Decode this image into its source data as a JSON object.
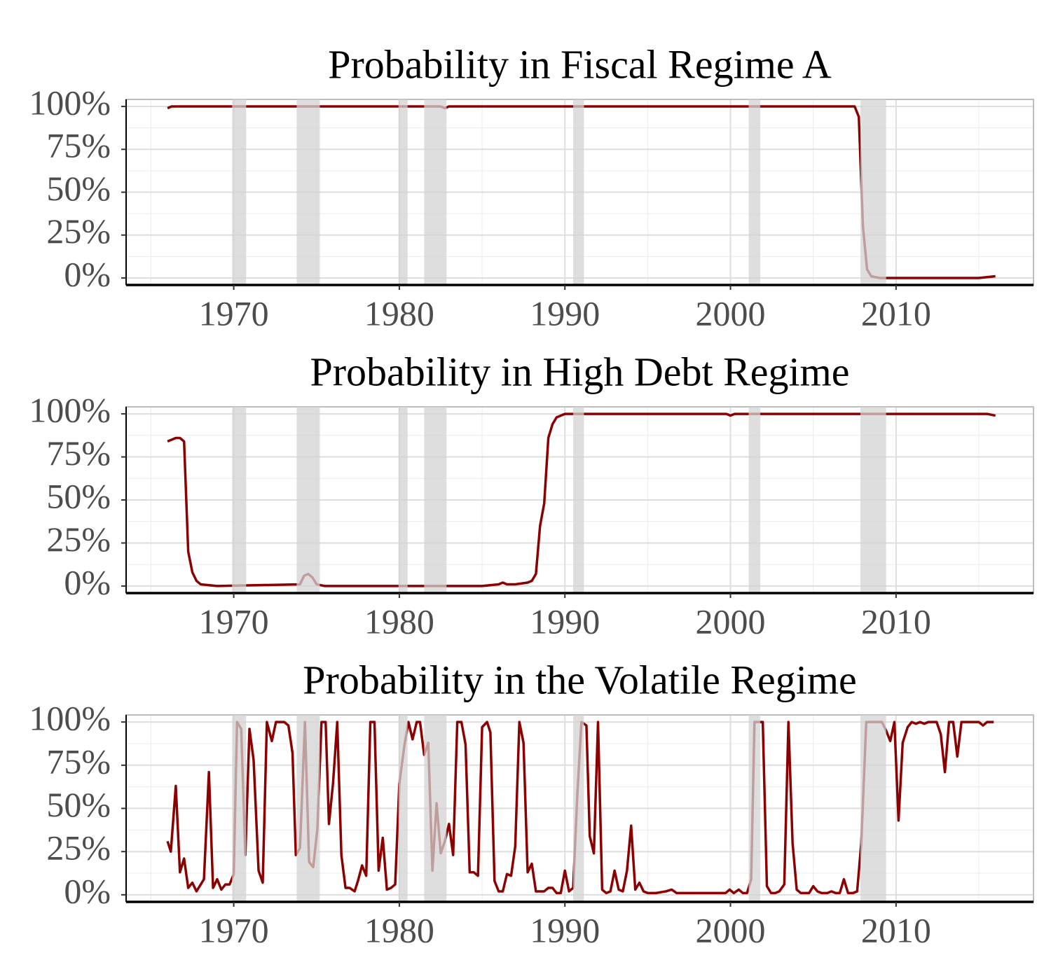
{
  "chart_data": [
    {
      "type": "line",
      "title": "Probability in Fiscal Regime A",
      "color": "#8b0000",
      "grid": true,
      "x": [
        1966,
        1966.25,
        1982.5,
        1982.75,
        1983,
        2007.5,
        2007.75,
        2008,
        2008.25,
        2008.5,
        2009,
        2015,
        2015.5,
        2016
      ],
      "values": [
        99,
        100,
        100,
        99,
        100,
        100,
        94,
        30,
        5,
        1,
        0,
        0,
        0.5,
        1
      ],
      "shaded_periods": [
        [
          1969.9,
          1970.75
        ],
        [
          1973.8,
          1975.2
        ],
        [
          1979.95,
          1980.5
        ],
        [
          1981.5,
          1982.85
        ],
        [
          1990.5,
          1991.15
        ],
        [
          2001.1,
          2001.8
        ],
        [
          2007.85,
          2009.4
        ]
      ],
      "xlim": [
        1963.5,
        2018.3
      ],
      "ylim": [
        -4.1,
        104.1
      ],
      "xticks": [
        1970,
        1980,
        1990,
        2000,
        2010
      ],
      "yticks": [
        {
          "value": 0,
          "label": "0%"
        },
        {
          "value": 25,
          "label": "25%"
        },
        {
          "value": 50,
          "label": "50%"
        },
        {
          "value": 75,
          "label": "75%"
        },
        {
          "value": 100,
          "label": "100%"
        }
      ],
      "minor_xticks": [
        1965,
        1975,
        1985,
        1995,
        2005,
        2015
      ],
      "minor_yticks": [
        12.5,
        37.5,
        62.5,
        87.5
      ]
    },
    {
      "type": "line",
      "title": "Probability in High Debt Regime",
      "color": "#8b0000",
      "grid": true,
      "x": [
        1966,
        1966.5,
        1966.75,
        1967,
        1967.25,
        1967.5,
        1967.75,
        1968,
        1969,
        1974,
        1974.25,
        1974.5,
        1974.75,
        1975,
        1975.5,
        1985,
        1986,
        1986.25,
        1986.5,
        1987,
        1987.75,
        1988,
        1988.25,
        1988.5,
        1988.75,
        1989,
        1989.25,
        1989.5,
        1990,
        1999.75,
        2000,
        2000.25,
        2015.5,
        2016
      ],
      "values": [
        84,
        86,
        86,
        84,
        20,
        8,
        3,
        1,
        0,
        1,
        6,
        7,
        5,
        1,
        0,
        0,
        1,
        2,
        1,
        1,
        2,
        3,
        7,
        35,
        48,
        86,
        94,
        98,
        100,
        100,
        99,
        100,
        100,
        99
      ],
      "shaded_periods": [
        [
          1969.9,
          1970.75
        ],
        [
          1973.8,
          1975.2
        ],
        [
          1979.95,
          1980.5
        ],
        [
          1981.5,
          1982.85
        ],
        [
          1990.5,
          1991.15
        ],
        [
          2001.1,
          2001.8
        ],
        [
          2007.85,
          2009.4
        ]
      ],
      "xlim": [
        1963.5,
        2018.3
      ],
      "ylim": [
        -4.1,
        104.1
      ],
      "xticks": [
        1970,
        1980,
        1990,
        2000,
        2010
      ],
      "yticks": [
        {
          "value": 0,
          "label": "0%"
        },
        {
          "value": 25,
          "label": "25%"
        },
        {
          "value": 50,
          "label": "50%"
        },
        {
          "value": 75,
          "label": "75%"
        },
        {
          "value": 100,
          "label": "100%"
        }
      ],
      "minor_xticks": [
        1965,
        1975,
        1985,
        1995,
        2005,
        2015
      ],
      "minor_yticks": [
        12.5,
        37.5,
        62.5,
        87.5
      ]
    },
    {
      "type": "line",
      "title": "Probability in the Volatile Regime",
      "color": "#8b0000",
      "grid": true,
      "x": [
        1966,
        1966.2,
        1966.5,
        1966.75,
        1967,
        1967.25,
        1967.5,
        1967.75,
        1968.2,
        1968.5,
        1968.75,
        1969,
        1969.25,
        1969.5,
        1969.75,
        1970,
        1970.2,
        1970.45,
        1970.7,
        1970.95,
        1971.2,
        1971.5,
        1971.75,
        1972,
        1972.3,
        1972.55,
        1973.05,
        1973.3,
        1973.55,
        1973.75,
        1974,
        1974.3,
        1974.55,
        1974.8,
        1975.05,
        1975.3,
        1975.55,
        1975.75,
        1976,
        1976.25,
        1976.5,
        1976.75,
        1977,
        1977.3,
        1977.5,
        1977.75,
        1978,
        1978.25,
        1978.5,
        1978.75,
        1979,
        1979.25,
        1979.5,
        1979.75,
        1980,
        1980.3,
        1980.55,
        1980.8,
        1981.05,
        1981.25,
        1981.5,
        1981.75,
        1982,
        1982.25,
        1982.5,
        1982.75,
        1983,
        1983.25,
        1983.5,
        1983.75,
        1984,
        1984.25,
        1984.5,
        1984.75,
        1985,
        1985.3,
        1985.5,
        1985.75,
        1986,
        1986.25,
        1986.5,
        1986.75,
        1987,
        1987.25,
        1987.5,
        1987.75,
        1988,
        1988.25,
        1988.5,
        1988.75,
        1989,
        1989.25,
        1989.5,
        1989.75,
        1990,
        1990.25,
        1990.5,
        1990.75,
        1991,
        1991.3,
        1991.5,
        1991.75,
        1992,
        1992.25,
        1992.5,
        1992.75,
        1993,
        1993.25,
        1993.5,
        1993.75,
        1994,
        1994.25,
        1994.5,
        1994.75,
        1995,
        1995.5,
        1996.1,
        1996.45,
        1996.75,
        1997.8,
        1998.65,
        1999.7,
        1999.95,
        2000.2,
        2000.5,
        2000.75,
        2001,
        2001.25,
        2001.45,
        2001.95,
        2002.2,
        2002.45,
        2002.7,
        2002.95,
        2003.25,
        2003.5,
        2003.75,
        2004,
        2004.25,
        2004.5,
        2004.75,
        2005,
        2005.25,
        2005.5,
        2005.85,
        2006.1,
        2006.35,
        2006.6,
        2006.85,
        2007.1,
        2007.4,
        2007.65,
        2007.9,
        2008.2,
        2009.15,
        2009.4,
        2009.65,
        2009.9,
        2010.15,
        2010.4,
        2010.7,
        2010.95,
        2011.2,
        2011.45,
        2011.7,
        2011.95,
        2012.45,
        2012.7,
        2012.95,
        2013.2,
        2013.45,
        2013.7,
        2013.95,
        2015,
        2015.25,
        2015.5,
        2015.9
      ],
      "values": [
        31,
        25,
        63,
        13,
        21,
        4,
        7,
        2,
        9,
        71,
        4,
        9,
        3,
        6,
        6,
        12,
        100,
        96,
        23,
        96,
        78,
        14,
        7,
        100,
        89,
        100,
        100,
        98,
        82,
        23,
        27,
        100,
        19,
        16,
        38,
        100,
        100,
        41,
        65,
        100,
        23,
        4,
        4,
        2,
        8,
        17,
        11,
        100,
        100,
        14,
        33,
        3,
        4,
        6,
        64,
        86,
        100,
        90,
        100,
        100,
        81,
        88,
        14,
        53,
        24,
        31,
        41,
        23,
        100,
        100,
        87,
        13,
        13,
        11,
        97,
        100,
        94,
        8,
        2,
        2,
        12,
        11,
        28,
        100,
        88,
        13,
        18,
        2,
        2,
        2,
        4,
        4,
        1,
        1,
        14,
        2,
        4,
        58,
        100,
        98,
        34,
        24,
        100,
        3,
        1,
        2,
        14,
        3,
        2,
        14,
        40,
        3,
        7,
        2,
        1,
        1,
        2,
        3,
        1,
        1,
        1,
        1,
        3,
        1,
        3,
        1,
        1,
        9,
        100,
        100,
        5,
        1,
        1,
        2,
        6,
        100,
        30,
        3,
        1,
        1,
        1,
        5,
        2,
        1,
        1,
        2,
        1,
        1,
        9,
        1,
        1,
        2,
        30,
        100,
        100,
        95,
        89,
        100,
        43,
        88,
        97,
        100,
        99,
        100,
        99,
        100,
        100,
        93,
        71,
        100,
        100,
        80,
        100,
        100,
        98,
        100,
        100
      ],
      "shaded_periods": [
        [
          1969.9,
          1970.75
        ],
        [
          1973.8,
          1975.2
        ],
        [
          1979.95,
          1980.5
        ],
        [
          1981.5,
          1982.85
        ],
        [
          1990.5,
          1991.15
        ],
        [
          2001.1,
          2001.8
        ],
        [
          2007.85,
          2009.4
        ]
      ],
      "xlim": [
        1963.5,
        2018.3
      ],
      "ylim": [
        -4.1,
        104.1
      ],
      "xticks": [
        1970,
        1980,
        1990,
        2000,
        2010
      ],
      "yticks": [
        {
          "value": 0,
          "label": "0%"
        },
        {
          "value": 25,
          "label": "25%"
        },
        {
          "value": 50,
          "label": "50%"
        },
        {
          "value": 75,
          "label": "75%"
        },
        {
          "value": 100,
          "label": "100%"
        }
      ],
      "minor_xticks": [
        1965,
        1975,
        1985,
        1995,
        2005,
        2015
      ],
      "minor_yticks": [
        12.5,
        37.5,
        62.5,
        87.5
      ]
    }
  ]
}
